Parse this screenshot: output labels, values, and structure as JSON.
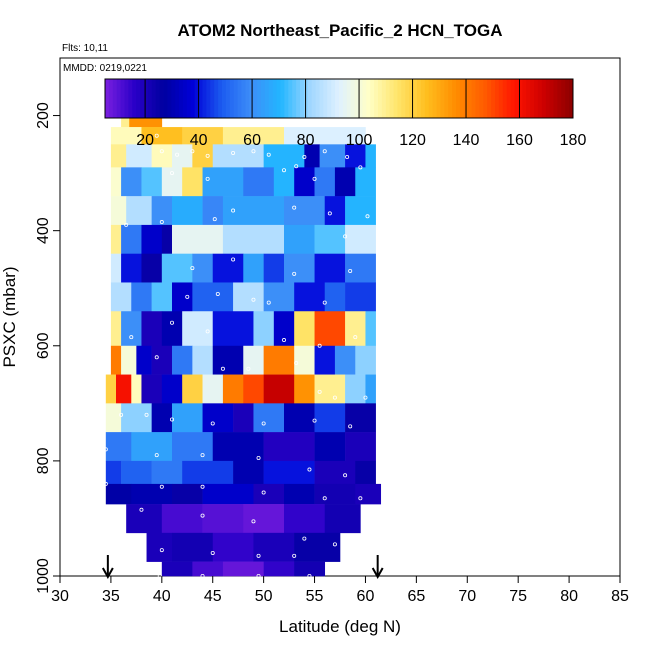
{
  "chart_data": {
    "type": "heatmap",
    "title": "ATOM2 Northeast_Pacific_2 HCN_TOGA",
    "flights_label": "Flts: 10,11",
    "dates_label": "MMDD: 0219,0221",
    "xlabel": "Latitude (deg N)",
    "ylabel": "PSXC (mbar)",
    "xlim": [
      30,
      85
    ],
    "ylim": [
      1000,
      100
    ],
    "x_ticks": [
      "30",
      "35",
      "40",
      "45",
      "50",
      "55",
      "60",
      "65",
      "70",
      "75",
      "80",
      "85"
    ],
    "y_ticks": [
      "200",
      "400",
      "600",
      "800",
      "1000"
    ],
    "colorbar": {
      "range": [
        5,
        180
      ],
      "ticks": [
        "20",
        "40",
        "60",
        "80",
        "100",
        "120",
        "140",
        "160",
        "180"
      ],
      "colors": [
        "#7b1fe0",
        "#2a00c8",
        "#0000a0",
        "#0000d8",
        "#1c5cf0",
        "#3d8ef8",
        "#22b6ff",
        "#9fd6ff",
        "#dff1ff",
        "#ffffc8",
        "#ffe56a",
        "#ffbe1e",
        "#ff8c00",
        "#ff5a00",
        "#ff1400",
        "#cc0000",
        "#8b0000"
      ]
    },
    "arrows_at_latitude": [
      34.7,
      61.2
    ],
    "grid": false,
    "legend": "colorbar-top",
    "rows": [
      {
        "p": [
          160,
          200
        ],
        "cells": [
          [
            36,
            37,
            120
          ],
          [
            37,
            38,
            150
          ],
          [
            38,
            39.5,
            170
          ]
        ]
      },
      {
        "p": [
          200,
          220
        ],
        "cells": [
          [
            36,
            36.8,
            110
          ],
          [
            36.8,
            40,
            135
          ]
        ]
      },
      {
        "p": [
          220,
          250
        ],
        "cells": [
          [
            35,
            38,
            105
          ],
          [
            38,
            42,
            125
          ],
          [
            42,
            46,
            120
          ],
          [
            46,
            52,
            110
          ],
          [
            52,
            60,
            92
          ]
        ]
      },
      {
        "p": [
          250,
          290
        ],
        "cells": [
          [
            35,
            36.5,
            110
          ],
          [
            36.5,
            39,
            90
          ],
          [
            39,
            41,
            105
          ],
          [
            41,
            43,
            95
          ],
          [
            43,
            45,
            120
          ],
          [
            45,
            50,
            85
          ],
          [
            50,
            54,
            70
          ],
          [
            54,
            55.5,
            30
          ],
          [
            55.5,
            58,
            60
          ],
          [
            58,
            60,
            40
          ],
          [
            60,
            61,
            70
          ]
        ]
      },
      {
        "p": [
          290,
          340
        ],
        "cells": [
          [
            35,
            36,
            102
          ],
          [
            36,
            38,
            60
          ],
          [
            38,
            40,
            75
          ],
          [
            40,
            42,
            95
          ],
          [
            42,
            44,
            115
          ],
          [
            44,
            48,
            65
          ],
          [
            48,
            51,
            55
          ],
          [
            51,
            53,
            70
          ],
          [
            53,
            55,
            35
          ],
          [
            55,
            57,
            55
          ],
          [
            57,
            59,
            30
          ],
          [
            59,
            61,
            70
          ]
        ]
      },
      {
        "p": [
          340,
          390
        ],
        "cells": [
          [
            35,
            36.5,
            100
          ],
          [
            36.5,
            39,
            85
          ],
          [
            39,
            41,
            60
          ],
          [
            41,
            44,
            68
          ],
          [
            44,
            46,
            58
          ],
          [
            46,
            52,
            65
          ],
          [
            52,
            56,
            60
          ],
          [
            56,
            58,
            40
          ],
          [
            58,
            61,
            70
          ]
        ]
      },
      {
        "p": [
          390,
          440
        ],
        "cells": [
          [
            35,
            36,
            110
          ],
          [
            36,
            38,
            55
          ],
          [
            38,
            40,
            35
          ],
          [
            40,
            41,
            25
          ],
          [
            41,
            46,
            95
          ],
          [
            46,
            52,
            85
          ],
          [
            52,
            55,
            65
          ],
          [
            55,
            58,
            75
          ],
          [
            58,
            61,
            90
          ]
        ]
      },
      {
        "p": [
          440,
          490
        ],
        "cells": [
          [
            35,
            36,
            90
          ],
          [
            36,
            38,
            40
          ],
          [
            38,
            40,
            25
          ],
          [
            40,
            43,
            75
          ],
          [
            43,
            45,
            60
          ],
          [
            45,
            48,
            40
          ],
          [
            48,
            50,
            65
          ],
          [
            50,
            52,
            45
          ],
          [
            52,
            55,
            60
          ],
          [
            55,
            58,
            40
          ],
          [
            58,
            61,
            55
          ]
        ]
      },
      {
        "p": [
          490,
          540
        ],
        "cells": [
          [
            35,
            37,
            85
          ],
          [
            37,
            39,
            55
          ],
          [
            39,
            41,
            75
          ],
          [
            41,
            43,
            35
          ],
          [
            43,
            47,
            50
          ],
          [
            47,
            50,
            85
          ],
          [
            50,
            53,
            60
          ],
          [
            53,
            56,
            40
          ],
          [
            56,
            58,
            50
          ],
          [
            58,
            61,
            45
          ]
        ]
      },
      {
        "p": [
          540,
          600
        ],
        "cells": [
          [
            35,
            36,
            110
          ],
          [
            36,
            38,
            60
          ],
          [
            38,
            40,
            20
          ],
          [
            40,
            42,
            30
          ],
          [
            42,
            45,
            90
          ],
          [
            45,
            49,
            40
          ],
          [
            49,
            51,
            80
          ],
          [
            51,
            53,
            35
          ],
          [
            53,
            55,
            115
          ],
          [
            55,
            58,
            150
          ],
          [
            58,
            60,
            110
          ],
          [
            60,
            61,
            75
          ]
        ]
      },
      {
        "p": [
          600,
          650
        ],
        "cells": [
          [
            35,
            36,
            140
          ],
          [
            36,
            37.5,
            100
          ],
          [
            37.5,
            39,
            35
          ],
          [
            39,
            41,
            20
          ],
          [
            41,
            43,
            55
          ],
          [
            43,
            45,
            85
          ],
          [
            45,
            48,
            30
          ],
          [
            48,
            50,
            95
          ],
          [
            50,
            53,
            140
          ],
          [
            53,
            55,
            100
          ],
          [
            55,
            57,
            40
          ],
          [
            57,
            59,
            60
          ],
          [
            59,
            61,
            80
          ]
        ]
      },
      {
        "p": [
          650,
          700
        ],
        "cells": [
          [
            34.5,
            35.5,
            120
          ],
          [
            35.5,
            37,
            160
          ],
          [
            37,
            38,
            105
          ],
          [
            38,
            40,
            20
          ],
          [
            40,
            42,
            35
          ],
          [
            42,
            44,
            120
          ],
          [
            44,
            46,
            95
          ],
          [
            46,
            48,
            140
          ],
          [
            48,
            50,
            150
          ],
          [
            50,
            53,
            170
          ],
          [
            53,
            55,
            135
          ],
          [
            55,
            58,
            110
          ],
          [
            58,
            60,
            80
          ],
          [
            60,
            61,
            65
          ]
        ]
      },
      {
        "p": [
          700,
          750
        ],
        "cells": [
          [
            34.5,
            36,
            100
          ],
          [
            36,
            39,
            80
          ],
          [
            39,
            41,
            30
          ],
          [
            41,
            44,
            65
          ],
          [
            44,
            47,
            35
          ],
          [
            47,
            49,
            20
          ],
          [
            49,
            52,
            55
          ],
          [
            52,
            55,
            30
          ],
          [
            55,
            58,
            45
          ],
          [
            58,
            61,
            25
          ]
        ]
      },
      {
        "p": [
          750,
          800
        ],
        "cells": [
          [
            34.5,
            37,
            55
          ],
          [
            37,
            41,
            65
          ],
          [
            41,
            45,
            55
          ],
          [
            45,
            50,
            30
          ],
          [
            50,
            55,
            18
          ],
          [
            55,
            58,
            30
          ],
          [
            58,
            61,
            20
          ]
        ]
      },
      {
        "p": [
          800,
          840
        ],
        "cells": [
          [
            34.5,
            36,
            45
          ],
          [
            36,
            39,
            50
          ],
          [
            39,
            42,
            55
          ],
          [
            42,
            47,
            45
          ],
          [
            47,
            50,
            30
          ],
          [
            50,
            55,
            40
          ],
          [
            55,
            59,
            20
          ],
          [
            59,
            61,
            25
          ]
        ]
      },
      {
        "p": [
          840,
          875
        ],
        "cells": [
          [
            34.5,
            37,
            28
          ],
          [
            37,
            41,
            30
          ],
          [
            41,
            44,
            25
          ],
          [
            44,
            49,
            35
          ],
          [
            49,
            52,
            20
          ],
          [
            52,
            55,
            30
          ],
          [
            55,
            59,
            22
          ],
          [
            59,
            61.5,
            20
          ]
        ]
      },
      {
        "p": [
          875,
          925
        ],
        "cells": [
          [
            36.5,
            40,
            20
          ],
          [
            40,
            44,
            12
          ],
          [
            44,
            48,
            10
          ],
          [
            48,
            52,
            8
          ],
          [
            52,
            56,
            15
          ],
          [
            56,
            59.5,
            22
          ]
        ]
      },
      {
        "p": [
          925,
          975
        ],
        "cells": [
          [
            38.5,
            41,
            20
          ],
          [
            41,
            45,
            22
          ],
          [
            45,
            49,
            15
          ],
          [
            49,
            53,
            20
          ],
          [
            53,
            57.5,
            25
          ]
        ]
      },
      {
        "p": [
          975,
          1000
        ],
        "cells": [
          [
            40,
            43,
            20
          ],
          [
            43,
            46,
            12
          ],
          [
            46,
            50,
            8
          ],
          [
            50,
            53,
            15
          ],
          [
            53,
            56,
            22
          ]
        ]
      }
    ],
    "observation_points": [
      [
        38,
        197
      ],
      [
        38.5,
        197
      ],
      [
        39,
        197
      ],
      [
        37.5,
        197
      ],
      [
        39.5,
        235
      ],
      [
        40,
        262
      ],
      [
        41.5,
        268
      ],
      [
        43,
        262
      ],
      [
        44.5,
        270
      ],
      [
        47,
        265
      ],
      [
        49,
        262
      ],
      [
        50.5,
        268
      ],
      [
        53.2,
        288
      ],
      [
        54,
        272
      ],
      [
        56,
        262
      ],
      [
        58.2,
        272
      ],
      [
        59.5,
        290
      ],
      [
        41,
        300
      ],
      [
        44.5,
        310
      ],
      [
        52,
        295
      ],
      [
        55,
        310
      ],
      [
        60.2,
        375
      ],
      [
        36.5,
        390
      ],
      [
        40,
        385
      ],
      [
        45.2,
        380
      ],
      [
        47,
        365
      ],
      [
        53,
        360
      ],
      [
        56.5,
        370
      ],
      [
        58,
        410
      ],
      [
        43,
        465
      ],
      [
        47,
        450
      ],
      [
        53,
        475
      ],
      [
        58.5,
        470
      ],
      [
        56,
        525
      ],
      [
        50.5,
        525
      ],
      [
        49,
        520
      ],
      [
        42.5,
        515
      ],
      [
        45.5,
        510
      ],
      [
        37,
        585
      ],
      [
        41,
        560
      ],
      [
        44.5,
        575
      ],
      [
        52,
        590
      ],
      [
        55.5,
        600
      ],
      [
        59,
        585
      ],
      [
        39.5,
        620
      ],
      [
        46,
        640
      ],
      [
        48.5,
        640
      ],
      [
        53.2,
        630
      ],
      [
        55.5,
        680
      ],
      [
        57,
        690
      ],
      [
        60,
        690
      ],
      [
        36,
        720
      ],
      [
        38.5,
        720
      ],
      [
        41,
        728
      ],
      [
        45,
        735
      ],
      [
        50,
        735
      ],
      [
        55,
        730
      ],
      [
        58.5,
        740
      ],
      [
        34.5,
        780
      ],
      [
        39.5,
        790
      ],
      [
        44,
        790
      ],
      [
        49.5,
        795
      ],
      [
        54.5,
        815
      ],
      [
        58,
        825
      ],
      [
        34.5,
        840
      ],
      [
        40,
        845
      ],
      [
        44,
        845
      ],
      [
        50,
        855
      ],
      [
        56,
        865
      ],
      [
        59.5,
        865
      ],
      [
        38,
        885
      ],
      [
        44,
        895
      ],
      [
        49,
        905
      ],
      [
        54,
        935
      ],
      [
        57,
        945
      ],
      [
        40,
        955
      ],
      [
        45,
        960
      ],
      [
        49.5,
        965
      ],
      [
        53,
        965
      ],
      [
        39.8,
        1000
      ],
      [
        44,
        1000
      ],
      [
        49.5,
        1000
      ],
      [
        54.5,
        1000
      ]
    ]
  }
}
